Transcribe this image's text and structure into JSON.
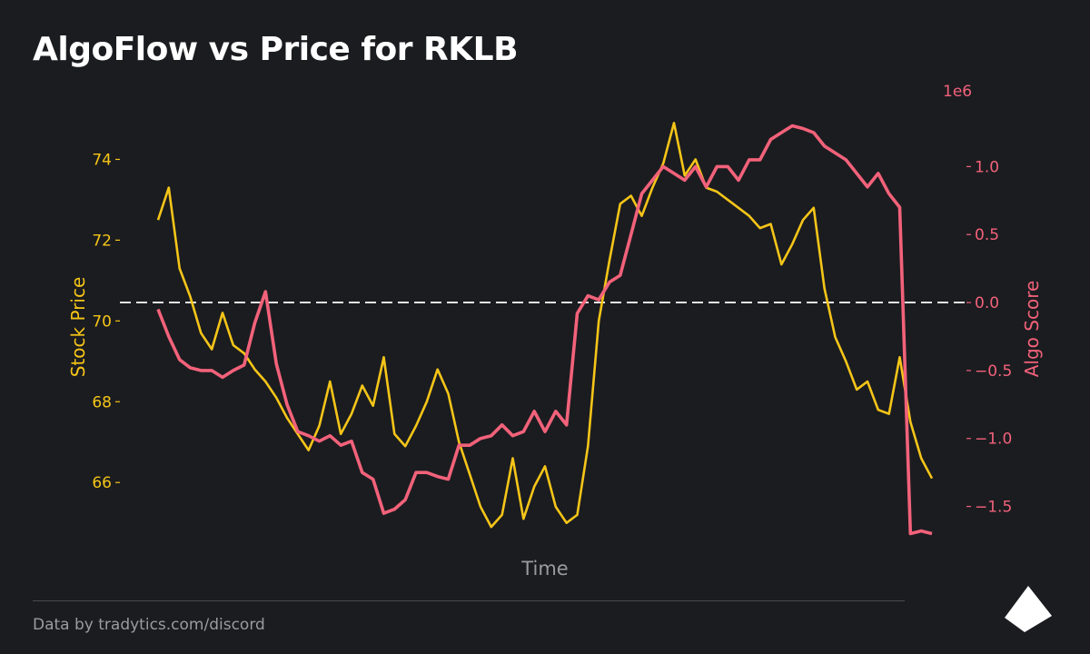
{
  "title": "AlgoFlow vs Price for RKLB",
  "footer": {
    "credit": "Data by tradytics.com/discord"
  },
  "colors": {
    "background": "#1b1c20",
    "price_line": "#f5c518",
    "algo_line": "#f2627a",
    "zero_line": "#e6e6e6",
    "axis_text": "#9a9ba0"
  },
  "chart_data": {
    "type": "line",
    "title": "AlgoFlow vs Price for RKLB",
    "xlabel": "Time",
    "ylabel_left": "Stock Price",
    "ylabel_right": "Algo Score",
    "right_axis_multiplier": "1e6",
    "left_ticks": [
      "74",
      "72",
      "70",
      "68",
      "66"
    ],
    "right_ticks": [
      "1.0",
      "0.5",
      "0.0",
      "−0.5",
      "−1.0",
      "−1.5"
    ],
    "left_ylim": [
      64.7,
      75.0
    ],
    "right_ylim": [
      -1.71,
      1.35
    ],
    "zero_line": 0.0,
    "grid": false,
    "series": [
      {
        "name": "Stock Price",
        "axis": "left",
        "values": [
          72.5,
          73.3,
          71.3,
          70.6,
          69.7,
          69.3,
          70.2,
          69.4,
          69.2,
          68.8,
          68.5,
          68.1,
          67.6,
          67.2,
          66.8,
          67.4,
          68.5,
          67.2,
          67.7,
          68.4,
          67.9,
          69.1,
          67.2,
          66.9,
          67.4,
          68.0,
          68.8,
          68.2,
          67.0,
          66.2,
          65.4,
          64.9,
          65.2,
          66.6,
          65.1,
          65.9,
          66.4,
          65.4,
          65.0,
          65.2,
          66.9,
          70.0,
          71.5,
          72.9,
          73.1,
          72.6,
          73.3,
          73.9,
          74.9,
          73.6,
          74.0,
          73.3,
          73.2,
          73.0,
          72.8,
          72.6,
          72.3,
          72.4,
          71.4,
          71.9,
          72.5,
          72.8,
          70.8,
          69.6,
          69.0,
          68.3,
          68.5,
          67.8,
          67.7,
          69.1,
          67.5,
          66.6,
          66.1
        ]
      },
      {
        "name": "Algo Score",
        "axis": "right",
        "values": [
          -0.05,
          -0.25,
          -0.42,
          -0.48,
          -0.5,
          -0.5,
          -0.55,
          -0.5,
          -0.46,
          -0.15,
          0.08,
          -0.45,
          -0.75,
          -0.95,
          -0.98,
          -1.02,
          -0.98,
          -1.05,
          -1.02,
          -1.25,
          -1.3,
          -1.55,
          -1.52,
          -1.45,
          -1.25,
          -1.25,
          -1.28,
          -1.3,
          -1.05,
          -1.05,
          -1.0,
          -0.98,
          -0.9,
          -0.98,
          -0.95,
          -0.8,
          -0.95,
          -0.8,
          -0.9,
          -0.08,
          0.05,
          0.02,
          0.15,
          0.2,
          0.5,
          0.8,
          0.9,
          1.0,
          0.95,
          0.9,
          1.0,
          0.85,
          1.0,
          1.0,
          0.9,
          1.05,
          1.05,
          1.2,
          1.25,
          1.3,
          1.28,
          1.25,
          1.15,
          1.1,
          1.05,
          0.95,
          0.85,
          0.95,
          0.8,
          0.7,
          -1.7,
          -1.68,
          -1.7
        ]
      }
    ]
  }
}
